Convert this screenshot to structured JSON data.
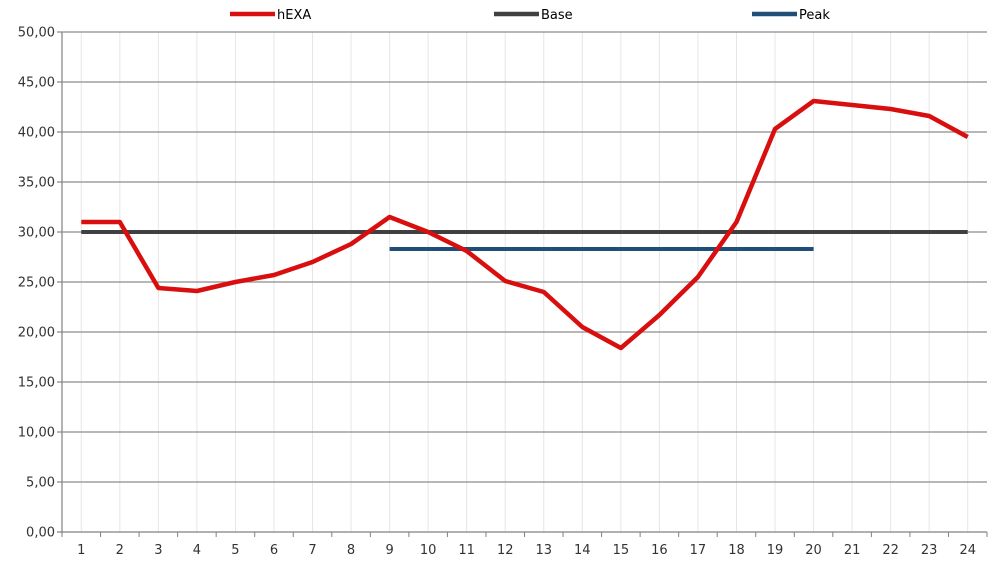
{
  "chart_data": {
    "type": "line",
    "title": "",
    "xlabel": "",
    "ylabel": "",
    "categories": [
      "1",
      "2",
      "3",
      "4",
      "5",
      "6",
      "7",
      "8",
      "9",
      "10",
      "11",
      "12",
      "13",
      "14",
      "15",
      "16",
      "17",
      "18",
      "19",
      "20",
      "21",
      "22",
      "23",
      "24"
    ],
    "y_ticks": [
      "0,00",
      "5,00",
      "10,00",
      "15,00",
      "20,00",
      "25,00",
      "30,00",
      "35,00",
      "40,00",
      "45,00",
      "50,00"
    ],
    "ylim": [
      0,
      50
    ],
    "grid": true,
    "legend_position": "top",
    "series": [
      {
        "name": "hEXA",
        "color": "#d90f0f",
        "x": [
          1,
          2,
          3,
          4,
          5,
          6,
          7,
          8,
          9,
          10,
          11,
          12,
          13,
          14,
          15,
          16,
          17,
          18,
          19,
          20,
          21,
          22,
          23,
          24
        ],
        "values": [
          31.0,
          31.0,
          24.4,
          24.1,
          25.0,
          25.7,
          27.0,
          28.8,
          31.5,
          30.0,
          28.1,
          25.1,
          24.0,
          20.5,
          18.4,
          21.7,
          25.5,
          31.0,
          40.3,
          43.1,
          42.7,
          42.3,
          41.6,
          39.5
        ]
      },
      {
        "name": "Base",
        "color": "#404040",
        "x": [
          1,
          24
        ],
        "values": [
          30.0,
          30.0
        ]
      },
      {
        "name": "Peak",
        "color": "#1f4e79",
        "x": [
          9,
          20
        ],
        "values": [
          28.3,
          28.3
        ]
      }
    ]
  }
}
